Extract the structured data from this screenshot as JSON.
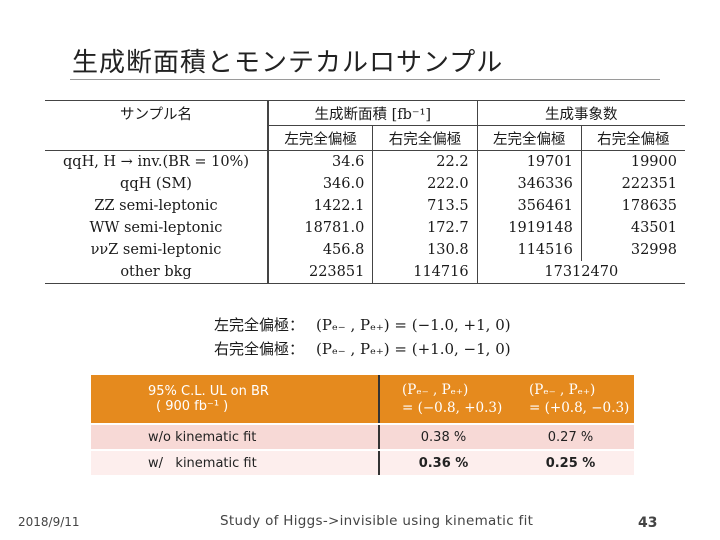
{
  "slide": {
    "title": "生成断面積とモンテカルロサンプル",
    "date": "2018/9/11",
    "footer": "Study of Higgs->invisible using kinematic fit",
    "page": "43"
  },
  "main_table": {
    "header_sample": "サンプル名",
    "header_xsec": "生成断面積 [fb⁻¹]",
    "header_events": "生成事象数",
    "sub_left": "左完全偏極",
    "sub_right": "右完全偏極",
    "rows": [
      {
        "name": "qqH, H → inv.(BR = 10%)",
        "xs_l": "34.6",
        "xs_r": "22.2",
        "ev_l": "19701",
        "ev_r": "19900"
      },
      {
        "name": "qqH (SM)",
        "xs_l": "346.0",
        "xs_r": "222.0",
        "ev_l": "346336",
        "ev_r": "222351"
      },
      {
        "name": "ZZ semi-leptonic",
        "xs_l": "1422.1",
        "xs_r": "713.5",
        "ev_l": "356461",
        "ev_r": "178635"
      },
      {
        "name": "WW semi-leptonic",
        "xs_l": "18781.0",
        "xs_r": "172.7",
        "ev_l": "1919148",
        "ev_r": "43501"
      },
      {
        "name": "ννZ semi-leptonic",
        "xs_l": "456.8",
        "xs_r": "130.8",
        "ev_l": "114516",
        "ev_r": "32998"
      },
      {
        "name": "other bkg",
        "xs_l": "223851",
        "xs_r": "114716",
        "ev_merged": "17312470"
      }
    ]
  },
  "polarization": {
    "left_label": "左完全偏極：",
    "left_def": "(Pₑ₋ , Pₑ₊) = (−1.0, +1, 0)",
    "right_label": "右完全偏極：",
    "right_def": "(Pₑ₋ , Pₑ₊) = (+1.0, −1, 0)"
  },
  "summary_table": {
    "header_line1": "95% C.L. UL on BR",
    "header_line2": "( 900 fb⁻¹ )",
    "col1_line1": "(Pₑ₋ , Pₑ₊)",
    "col1_line2": "= (−0.8, +0.3)",
    "col2_line1": "(Pₑ₋ , Pₑ₊)",
    "col2_line2": "= (+0.8, −0.3)",
    "rows": [
      {
        "label": "w/o kinematic fit",
        "v1": "0.38 %",
        "v2": "0.27 %",
        "bold": false
      },
      {
        "label": "w/   kinematic fit",
        "v1": "0.36 %",
        "v2": "0.25 %",
        "bold": true
      }
    ]
  }
}
